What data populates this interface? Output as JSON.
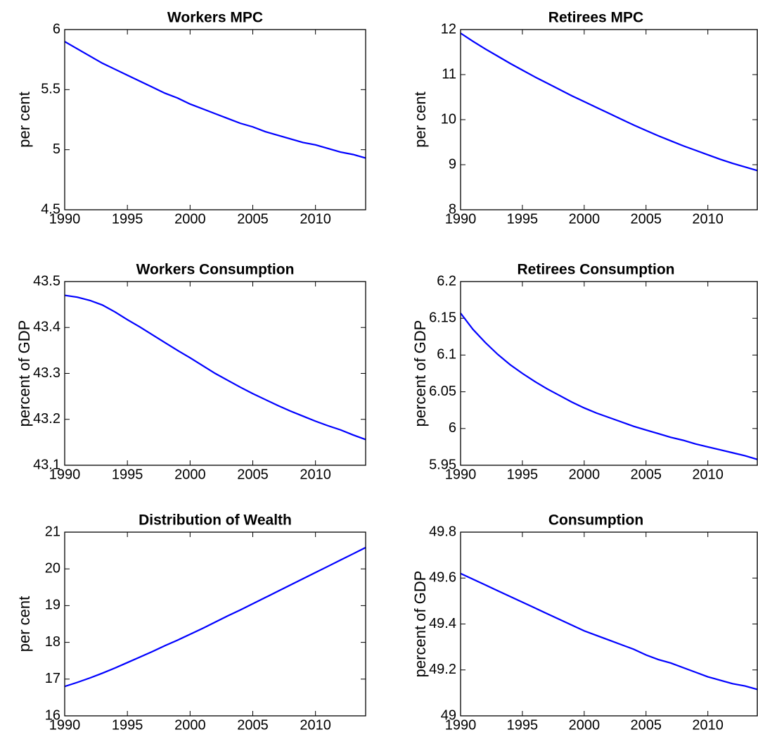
{
  "chart_data": [
    {
      "type": "line",
      "title": "Workers MPC",
      "y_label": "per cent",
      "x": [
        1990,
        1991,
        1992,
        1993,
        1994,
        1995,
        1996,
        1997,
        1998,
        1999,
        2000,
        2001,
        2002,
        2003,
        2004,
        2005,
        2006,
        2007,
        2008,
        2009,
        2010,
        2011,
        2012,
        2013,
        2014
      ],
      "series": [
        {
          "color": "#0000ff",
          "values": [
            5.9,
            5.84,
            5.78,
            5.72,
            5.67,
            5.62,
            5.57,
            5.52,
            5.47,
            5.43,
            5.38,
            5.34,
            5.3,
            5.26,
            5.22,
            5.19,
            5.15,
            5.12,
            5.09,
            5.06,
            5.04,
            5.01,
            4.98,
            4.96,
            4.93
          ]
        }
      ],
      "xlim": [
        1990,
        2014
      ],
      "xticks": [
        1990,
        1995,
        2000,
        2005,
        2010
      ],
      "ylim": [
        4.5,
        6
      ],
      "yticks": [
        4.5,
        5,
        5.5,
        6
      ]
    },
    {
      "type": "line",
      "title": "Retirees MPC",
      "y_label": "per cent",
      "x": [
        1990,
        1991,
        1992,
        1993,
        1994,
        1995,
        1996,
        1997,
        1998,
        1999,
        2000,
        2001,
        2002,
        2003,
        2004,
        2005,
        2006,
        2007,
        2008,
        2009,
        2010,
        2011,
        2012,
        2013,
        2014
      ],
      "series": [
        {
          "color": "#0000ff",
          "values": [
            11.92,
            11.74,
            11.57,
            11.41,
            11.25,
            11.1,
            10.95,
            10.81,
            10.67,
            10.53,
            10.4,
            10.27,
            10.14,
            10.01,
            9.88,
            9.76,
            9.64,
            9.53,
            9.42,
            9.32,
            9.22,
            9.12,
            9.03,
            8.95,
            8.87
          ]
        }
      ],
      "xlim": [
        1990,
        2014
      ],
      "xticks": [
        1990,
        1995,
        2000,
        2005,
        2010
      ],
      "ylim": [
        8,
        12
      ],
      "yticks": [
        8,
        9,
        10,
        11,
        12
      ]
    },
    {
      "type": "line",
      "title": "Workers Consumption",
      "y_label": "percent of GDP",
      "x": [
        1990,
        1991,
        1992,
        1993,
        1994,
        1995,
        1996,
        1997,
        1998,
        1999,
        2000,
        2001,
        2002,
        2003,
        2004,
        2005,
        2006,
        2007,
        2008,
        2009,
        2010,
        2011,
        2012,
        2013,
        2014
      ],
      "series": [
        {
          "color": "#0000ff",
          "values": [
            43.47,
            43.466,
            43.459,
            43.449,
            43.434,
            43.417,
            43.401,
            43.384,
            43.367,
            43.35,
            43.334,
            43.317,
            43.3,
            43.285,
            43.27,
            43.256,
            43.243,
            43.23,
            43.218,
            43.207,
            43.196,
            43.186,
            43.177,
            43.166,
            43.156
          ]
        }
      ],
      "xlim": [
        1990,
        2014
      ],
      "xticks": [
        1990,
        1995,
        2000,
        2005,
        2010
      ],
      "ylim": [
        43.1,
        43.5
      ],
      "yticks": [
        43.1,
        43.2,
        43.3,
        43.4,
        43.5
      ]
    },
    {
      "type": "line",
      "title": "Retirees Consumption",
      "y_label": "percent of GDP",
      "x": [
        1990,
        1991,
        1992,
        1993,
        1994,
        1995,
        1996,
        1997,
        1998,
        1999,
        2000,
        2001,
        2002,
        2003,
        2004,
        2005,
        2006,
        2007,
        2008,
        2009,
        2010,
        2011,
        2012,
        2013,
        2014
      ],
      "series": [
        {
          "color": "#0000ff",
          "values": [
            6.157,
            6.135,
            6.117,
            6.101,
            6.087,
            6.075,
            6.064,
            6.054,
            6.045,
            6.036,
            6.028,
            6.021,
            6.015,
            6.009,
            6.003,
            5.998,
            5.993,
            5.988,
            5.984,
            5.979,
            5.975,
            5.971,
            5.967,
            5.963,
            5.958
          ]
        }
      ],
      "xlim": [
        1990,
        2014
      ],
      "xticks": [
        1990,
        1995,
        2000,
        2005,
        2010
      ],
      "ylim": [
        5.95,
        6.2
      ],
      "yticks": [
        5.95,
        6,
        6.05,
        6.1,
        6.15,
        6.2
      ]
    },
    {
      "type": "line",
      "title": "Distribution of Wealth",
      "y_label": "per cent",
      "x": [
        1990,
        1991,
        1992,
        1993,
        1994,
        1995,
        1996,
        1997,
        1998,
        1999,
        2000,
        2001,
        2002,
        2003,
        2004,
        2005,
        2006,
        2007,
        2008,
        2009,
        2010,
        2011,
        2012,
        2013,
        2014
      ],
      "series": [
        {
          "color": "#0000ff",
          "values": [
            16.8,
            16.91,
            17.03,
            17.16,
            17.3,
            17.45,
            17.6,
            17.75,
            17.91,
            18.06,
            18.22,
            18.38,
            18.55,
            18.72,
            18.88,
            19.05,
            19.22,
            19.39,
            19.56,
            19.73,
            19.9,
            20.07,
            20.24,
            20.41,
            20.58
          ]
        }
      ],
      "xlim": [
        1990,
        2014
      ],
      "xticks": [
        1990,
        1995,
        2000,
        2005,
        2010
      ],
      "ylim": [
        16,
        21
      ],
      "yticks": [
        16,
        17,
        18,
        19,
        20,
        21
      ]
    },
    {
      "type": "line",
      "title": "Consumption",
      "y_label": "percent of GDP",
      "x": [
        1990,
        1991,
        1992,
        1993,
        1994,
        1995,
        1996,
        1997,
        1998,
        1999,
        2000,
        2001,
        2002,
        2003,
        2004,
        2005,
        2006,
        2007,
        2008,
        2009,
        2010,
        2011,
        2012,
        2013,
        2014
      ],
      "series": [
        {
          "color": "#0000ff",
          "values": [
            49.62,
            49.595,
            49.57,
            49.545,
            49.52,
            49.495,
            49.47,
            49.445,
            49.42,
            49.395,
            49.37,
            49.35,
            49.33,
            49.31,
            49.29,
            49.265,
            49.245,
            49.23,
            49.21,
            49.19,
            49.17,
            49.155,
            49.14,
            49.13,
            49.115
          ]
        }
      ],
      "xlim": [
        1990,
        2014
      ],
      "xticks": [
        1990,
        1995,
        2000,
        2005,
        2010
      ],
      "ylim": [
        49,
        49.8
      ],
      "yticks": [
        49,
        49.2,
        49.4,
        49.6,
        49.8
      ]
    }
  ]
}
